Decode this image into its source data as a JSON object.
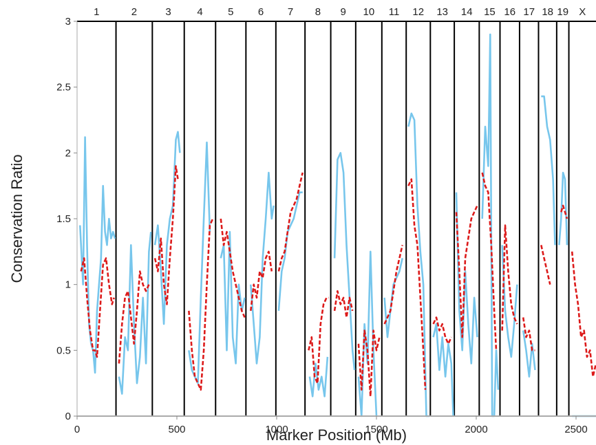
{
  "chart_data": {
    "type": "line",
    "xlabel": "Marker Position (Mb)",
    "ylabel": "Conservation Ratio",
    "xlim": [
      0,
      2600
    ],
    "ylim": [
      0,
      3
    ],
    "x_ticks": [
      0,
      500,
      1000,
      1500,
      2000,
      2500
    ],
    "y_ticks": [
      0,
      0.5,
      1,
      1.5,
      2,
      2.5,
      3
    ],
    "y_tick_labels": [
      "0",
      "0.5",
      "1",
      "1.5",
      "2",
      "2.5",
      "3"
    ],
    "grid": false,
    "colors": {
      "series_a": "#77c6ec",
      "series_b": "#dc1a1a",
      "boundary": "#000000"
    },
    "chromosomes": [
      {
        "label": "1",
        "start": 0,
        "end": 195
      },
      {
        "label": "2",
        "start": 195,
        "end": 377
      },
      {
        "label": "3",
        "start": 377,
        "end": 537
      },
      {
        "label": "4",
        "start": 537,
        "end": 694
      },
      {
        "label": "5",
        "start": 694,
        "end": 846
      },
      {
        "label": "6",
        "start": 846,
        "end": 996
      },
      {
        "label": "7",
        "start": 996,
        "end": 1142
      },
      {
        "label": "8",
        "start": 1142,
        "end": 1271
      },
      {
        "label": "9",
        "start": 1271,
        "end": 1396
      },
      {
        "label": "10",
        "start": 1396,
        "end": 1527
      },
      {
        "label": "11",
        "start": 1527,
        "end": 1649
      },
      {
        "label": "12",
        "start": 1649,
        "end": 1770
      },
      {
        "label": "13",
        "start": 1770,
        "end": 1890
      },
      {
        "label": "14",
        "start": 1890,
        "end": 2015
      },
      {
        "label": "15",
        "start": 2015,
        "end": 2119
      },
      {
        "label": "16",
        "start": 2119,
        "end": 2217
      },
      {
        "label": "17",
        "start": 2217,
        "end": 2312
      },
      {
        "label": "18",
        "start": 2312,
        "end": 2403
      },
      {
        "label": "19",
        "start": 2403,
        "end": 2464
      },
      {
        "label": "X",
        "start": 2464,
        "end": 2600
      }
    ],
    "series": [
      {
        "style": "solid",
        "segments": [
          {
            "x": [
              15,
              30,
              40,
              50,
              60,
              70,
              80,
              90,
              100,
              110,
              120,
              130,
              140,
              150,
              160,
              170,
              180,
              190
            ],
            "y": [
              1.45,
              1.0,
              2.12,
              1.3,
              0.7,
              0.55,
              0.5,
              0.33,
              0.8,
              1.0,
              1.2,
              1.75,
              1.4,
              1.3,
              1.5,
              1.35,
              1.4,
              1.35
            ]
          },
          {
            "x": [
              210,
              225,
              240,
              255,
              270,
              285,
              300,
              315,
              330,
              345,
              360,
              370
            ],
            "y": [
              0.3,
              0.17,
              0.6,
              0.5,
              1.3,
              0.7,
              0.25,
              0.45,
              0.9,
              0.4,
              1.25,
              1.4
            ]
          },
          {
            "x": [
              390,
              405,
              420,
              435,
              450,
              465,
              480,
              495,
              505,
              515
            ],
            "y": [
              1.3,
              1.45,
              1.1,
              0.7,
              1.3,
              1.5,
              1.6,
              2.1,
              2.16,
              2.0
            ]
          },
          {
            "x": [
              560,
              575,
              590,
              605,
              620,
              635,
              650,
              665
            ],
            "y": [
              0.5,
              0.35,
              0.3,
              0.25,
              0.9,
              1.5,
              2.08,
              1.4
            ]
          },
          {
            "x": [
              720,
              735,
              750,
              765,
              780,
              795,
              810,
              825,
              840
            ],
            "y": [
              1.2,
              1.3,
              0.5,
              1.4,
              0.6,
              0.4,
              1.0,
              0.8,
              0.9
            ]
          },
          {
            "x": [
              870,
              885,
              900,
              915,
              930,
              945,
              960,
              975,
              985
            ],
            "y": [
              1.0,
              0.7,
              0.4,
              0.6,
              1.2,
              1.5,
              1.85,
              1.5,
              1.6
            ]
          },
          {
            "x": [
              1010,
              1025,
              1040,
              1055,
              1070,
              1085,
              1100,
              1115,
              1130
            ],
            "y": [
              0.8,
              1.1,
              1.2,
              1.4,
              1.45,
              1.5,
              1.6,
              1.7,
              1.7
            ]
          },
          {
            "x": [
              1165,
              1180,
              1195,
              1210,
              1225,
              1240,
              1255
            ],
            "y": [
              0.3,
              0.15,
              0.4,
              0.2,
              0.3,
              0.15,
              0.45
            ]
          },
          {
            "x": [
              1290,
              1305,
              1320,
              1335,
              1350,
              1365,
              1380,
              1390
            ],
            "y": [
              1.2,
              1.95,
              2.0,
              1.85,
              1.3,
              0.9,
              0.5,
              0.35
            ]
          },
          {
            "x": [
              1410,
              1425,
              1440,
              1455,
              1470,
              1485,
              1500
            ],
            "y": [
              0.3,
              0.0,
              0.7,
              0.4,
              1.25,
              0.5,
              0.0
            ]
          },
          {
            "x": [
              1540,
              1555,
              1570,
              1585,
              1600,
              1615,
              1630
            ],
            "y": [
              0.9,
              0.6,
              0.8,
              1.0,
              1.05,
              1.1,
              1.2
            ]
          },
          {
            "x": [
              1660,
              1675,
              1690,
              1705,
              1720,
              1735,
              1750,
              1765
            ],
            "y": [
              2.2,
              2.3,
              2.25,
              1.6,
              1.25,
              1.0,
              0.0,
              0.0
            ]
          },
          {
            "x": [
              1785,
              1800,
              1815,
              1830,
              1845,
              1860,
              1875,
              1885
            ],
            "y": [
              0.6,
              0.7,
              0.35,
              0.6,
              0.3,
              0.55,
              0.4,
              0.0
            ]
          },
          {
            "x": [
              1900,
              1915,
              1930,
              1945,
              1960,
              1975,
              1990,
              2005
            ],
            "y": [
              1.7,
              0.8,
              0.5,
              1.1,
              0.7,
              0.4,
              0.9,
              0.6
            ]
          },
          {
            "x": [
              2030,
              2045,
              2060,
              2070,
              2080,
              2090,
              2100,
              2110
            ],
            "y": [
              1.5,
              2.2,
              1.9,
              2.9,
              0.0,
              0.0,
              0.5,
              0.2
            ]
          },
          {
            "x": [
              2130,
              2145,
              2160,
              2175,
              2190,
              2205
            ],
            "y": [
              1.3,
              0.8,
              0.6,
              0.45,
              0.7,
              1.0
            ]
          },
          {
            "x": [
              2235,
              2250,
              2265,
              2280,
              2295
            ],
            "y": [
              0.65,
              0.5,
              0.3,
              0.55,
              0.35
            ]
          },
          {
            "x": [
              2325,
              2340,
              2355,
              2370,
              2385,
              2395
            ],
            "y": [
              2.43,
              2.43,
              2.2,
              2.1,
              1.8,
              1.3
            ]
          },
          {
            "x": [
              2415,
              2425,
              2435,
              2445,
              2455
            ],
            "y": [
              1.3,
              1.5,
              1.85,
              1.8,
              1.3
            ]
          },
          {
            "x": [
              2480,
              2520,
              2560,
              2600
            ],
            "y": [
              0.0,
              0.0,
              0.0,
              0.0
            ]
          }
        ]
      },
      {
        "style": "dashed",
        "segments": [
          {
            "x": [
              20,
              35,
              50,
              65,
              80,
              90,
              100,
              115,
              130,
              145,
              160,
              175,
              185
            ],
            "y": [
              1.1,
              1.2,
              0.9,
              0.65,
              0.5,
              0.5,
              0.45,
              0.8,
              1.15,
              1.2,
              1.0,
              0.85,
              0.9
            ]
          },
          {
            "x": [
              210,
              225,
              240,
              255,
              270,
              285,
              300,
              315,
              330,
              345,
              360
            ],
            "y": [
              0.4,
              0.7,
              0.9,
              0.95,
              0.75,
              0.55,
              0.8,
              1.1,
              1.0,
              0.95,
              1.0
            ]
          },
          {
            "x": [
              390,
              405,
              420,
              435,
              450,
              465,
              480,
              495,
              505
            ],
            "y": [
              1.2,
              1.1,
              1.35,
              1.0,
              0.85,
              1.2,
              1.5,
              1.9,
              1.8
            ]
          },
          {
            "x": [
              560,
              575,
              590,
              605,
              620,
              635,
              650,
              665,
              680
            ],
            "y": [
              0.8,
              0.5,
              0.3,
              0.25,
              0.2,
              0.5,
              1.0,
              1.45,
              1.5
            ]
          },
          {
            "x": [
              720,
              735,
              750,
              765,
              780,
              795,
              810,
              825,
              840
            ],
            "y": [
              1.5,
              1.3,
              1.4,
              1.25,
              1.1,
              1.0,
              0.9,
              0.8,
              0.75
            ]
          },
          {
            "x": [
              870,
              885,
              900,
              915,
              930,
              945,
              960,
              975
            ],
            "y": [
              0.8,
              1.0,
              0.9,
              1.1,
              1.05,
              1.2,
              1.25,
              1.1
            ]
          },
          {
            "x": [
              1010,
              1025,
              1040,
              1055,
              1070,
              1085,
              1100,
              1115,
              1130
            ],
            "y": [
              1.1,
              1.2,
              1.25,
              1.4,
              1.55,
              1.6,
              1.65,
              1.75,
              1.85
            ]
          },
          {
            "x": [
              1160,
              1175,
              1190,
              1205,
              1220,
              1235,
              1250,
              1260
            ],
            "y": [
              0.5,
              0.6,
              0.3,
              0.25,
              0.7,
              0.85,
              0.9,
              0.9
            ]
          },
          {
            "x": [
              1290,
              1305,
              1320,
              1335,
              1350,
              1365,
              1380
            ],
            "y": [
              0.8,
              0.95,
              0.85,
              0.9,
              0.75,
              0.9,
              0.8
            ]
          },
          {
            "x": [
              1410,
              1425,
              1440,
              1455,
              1470,
              1485,
              1500,
              1515
            ],
            "y": [
              0.55,
              0.2,
              0.65,
              0.5,
              0.15,
              0.65,
              0.5,
              0.6
            ]
          },
          {
            "x": [
              1540,
              1555,
              1570,
              1585,
              1600,
              1615,
              1630
            ],
            "y": [
              0.7,
              0.75,
              0.8,
              0.95,
              1.1,
              1.2,
              1.3
            ]
          },
          {
            "x": [
              1660,
              1675,
              1690,
              1705,
              1720,
              1735,
              1745
            ],
            "y": [
              1.75,
              1.8,
              1.45,
              1.3,
              0.9,
              0.5,
              0.2
            ]
          },
          {
            "x": [
              1785,
              1800,
              1815,
              1830,
              1845,
              1860,
              1875
            ],
            "y": [
              0.7,
              0.75,
              0.65,
              0.7,
              0.6,
              0.55,
              0.6
            ]
          },
          {
            "x": [
              1900,
              1915,
              1930,
              1945,
              1960,
              1975,
              1990,
              2005
            ],
            "y": [
              1.55,
              1.1,
              0.6,
              1.2,
              1.35,
              1.5,
              1.55,
              1.6
            ]
          },
          {
            "x": [
              2030,
              2045,
              2060,
              2075,
              2090,
              2100
            ],
            "y": [
              1.85,
              1.75,
              1.7,
              1.3,
              0.8,
              0.5
            ]
          },
          {
            "x": [
              2130,
              2145,
              2160,
              2175,
              2190,
              2205
            ],
            "y": [
              0.65,
              1.45,
              1.1,
              0.85,
              0.75,
              0.7
            ]
          },
          {
            "x": [
              2235,
              2250,
              2265,
              2280,
              2295
            ],
            "y": [
              0.75,
              0.6,
              0.65,
              0.5,
              0.5
            ]
          },
          {
            "x": [
              2325,
              2340,
              2355,
              2370
            ],
            "y": [
              1.3,
              1.2,
              1.1,
              1.0
            ]
          },
          {
            "x": [
              2425,
              2435,
              2445,
              2455
            ],
            "y": [
              1.55,
              1.6,
              1.55,
              1.5
            ]
          },
          {
            "x": [
              2480,
              2495,
              2510,
              2525,
              2540,
              2555,
              2570,
              2585,
              2600
            ],
            "y": [
              1.25,
              1.0,
              0.85,
              0.6,
              0.65,
              0.45,
              0.5,
              0.3,
              0.4
            ]
          }
        ]
      }
    ]
  }
}
